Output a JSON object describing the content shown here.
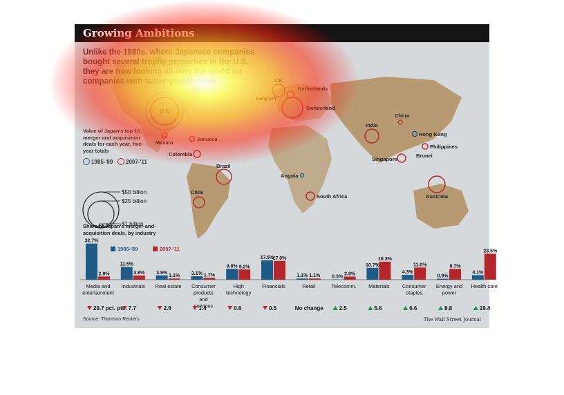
{
  "title": "Growing Ambitions",
  "intro": "Unlike the 1980s, where Japanese companies bought several trophy properties in the U.S., they are now looking all over the world for companies with faster growth rates.",
  "map_legend": {
    "title": "Value of Japan's top 10 merger and acquisition deals for each year, five-year totals",
    "period1": "1985-'89",
    "period2": "2007-'11",
    "sizes": [
      "$50 billion",
      "$25 billion",
      "$1 billion"
    ]
  },
  "map_labels": [
    "U.K.",
    "Netherlands",
    "Belgium",
    "Switzerland",
    "U.S.",
    "Mexico",
    "Jamaica",
    "Colombia",
    "Brazil",
    "Chile",
    "Angola",
    "South Africa",
    "India",
    "China",
    "Hong Kong",
    "Philippines",
    "Singapore",
    "Brunei",
    "Australia"
  ],
  "colors": {
    "period1": "#1f5b87",
    "period2": "#b3262b",
    "down": "#c0272d",
    "up": "#2a8a4a",
    "land": "#b89a72",
    "background": "#d6d9dc",
    "titlebar": "#141414"
  },
  "chart_data": {
    "type": "bar",
    "title": "Share of Japan's merger-and-acquisition deals, by industry",
    "categories": [
      "Media and entertainment",
      "Industrials",
      "Real estate",
      "Consumer products and services",
      "High technology",
      "Financials",
      "Retail",
      "Telecomm.",
      "Materials",
      "Consumer staples",
      "Energy and power",
      "Health care"
    ],
    "series": [
      {
        "name": "1985-'89",
        "values": [
          32.7,
          11.5,
          3.9,
          3.1,
          9.8,
          17.5,
          1.1,
          0.3,
          10.7,
          4.3,
          0.9,
          4.1
        ]
      },
      {
        "name": "2007-'11",
        "values": [
          2.9,
          3.8,
          1.1,
          1.7,
          9.2,
          17.0,
          1.1,
          2.8,
          16.3,
          11.0,
          9.7,
          23.5
        ]
      }
    ],
    "value_labels": [
      [
        "32.7%",
        "11.5%",
        "3.9%",
        "3.1%",
        "9.8%",
        "17.5%",
        "1.1%",
        "0.3%",
        "10.7%",
        "4.3%",
        "0.9%",
        "4.1%"
      ],
      [
        "2.9%",
        "3.8%",
        "1.1%",
        "1.7%",
        "9.2%",
        "17.0%",
        "1.1%",
        "2.8%",
        "16.3%",
        "11.0%",
        "9.7%",
        "23.5%"
      ]
    ],
    "changes": [
      "29.7 pct. pts.",
      "7.7",
      "2.9",
      "1.4",
      "0.6",
      "0.5",
      "No change",
      "2.5",
      "5.6",
      "6.6",
      "8.8",
      "19.4"
    ],
    "change_direction": [
      "down",
      "down",
      "down",
      "down",
      "down",
      "down",
      "none",
      "up",
      "up",
      "up",
      "up",
      "up"
    ],
    "legend_position": "top-left",
    "grid": false
  },
  "source": "Source: Thomson Reuters",
  "credit": "The Wall Street Journal"
}
